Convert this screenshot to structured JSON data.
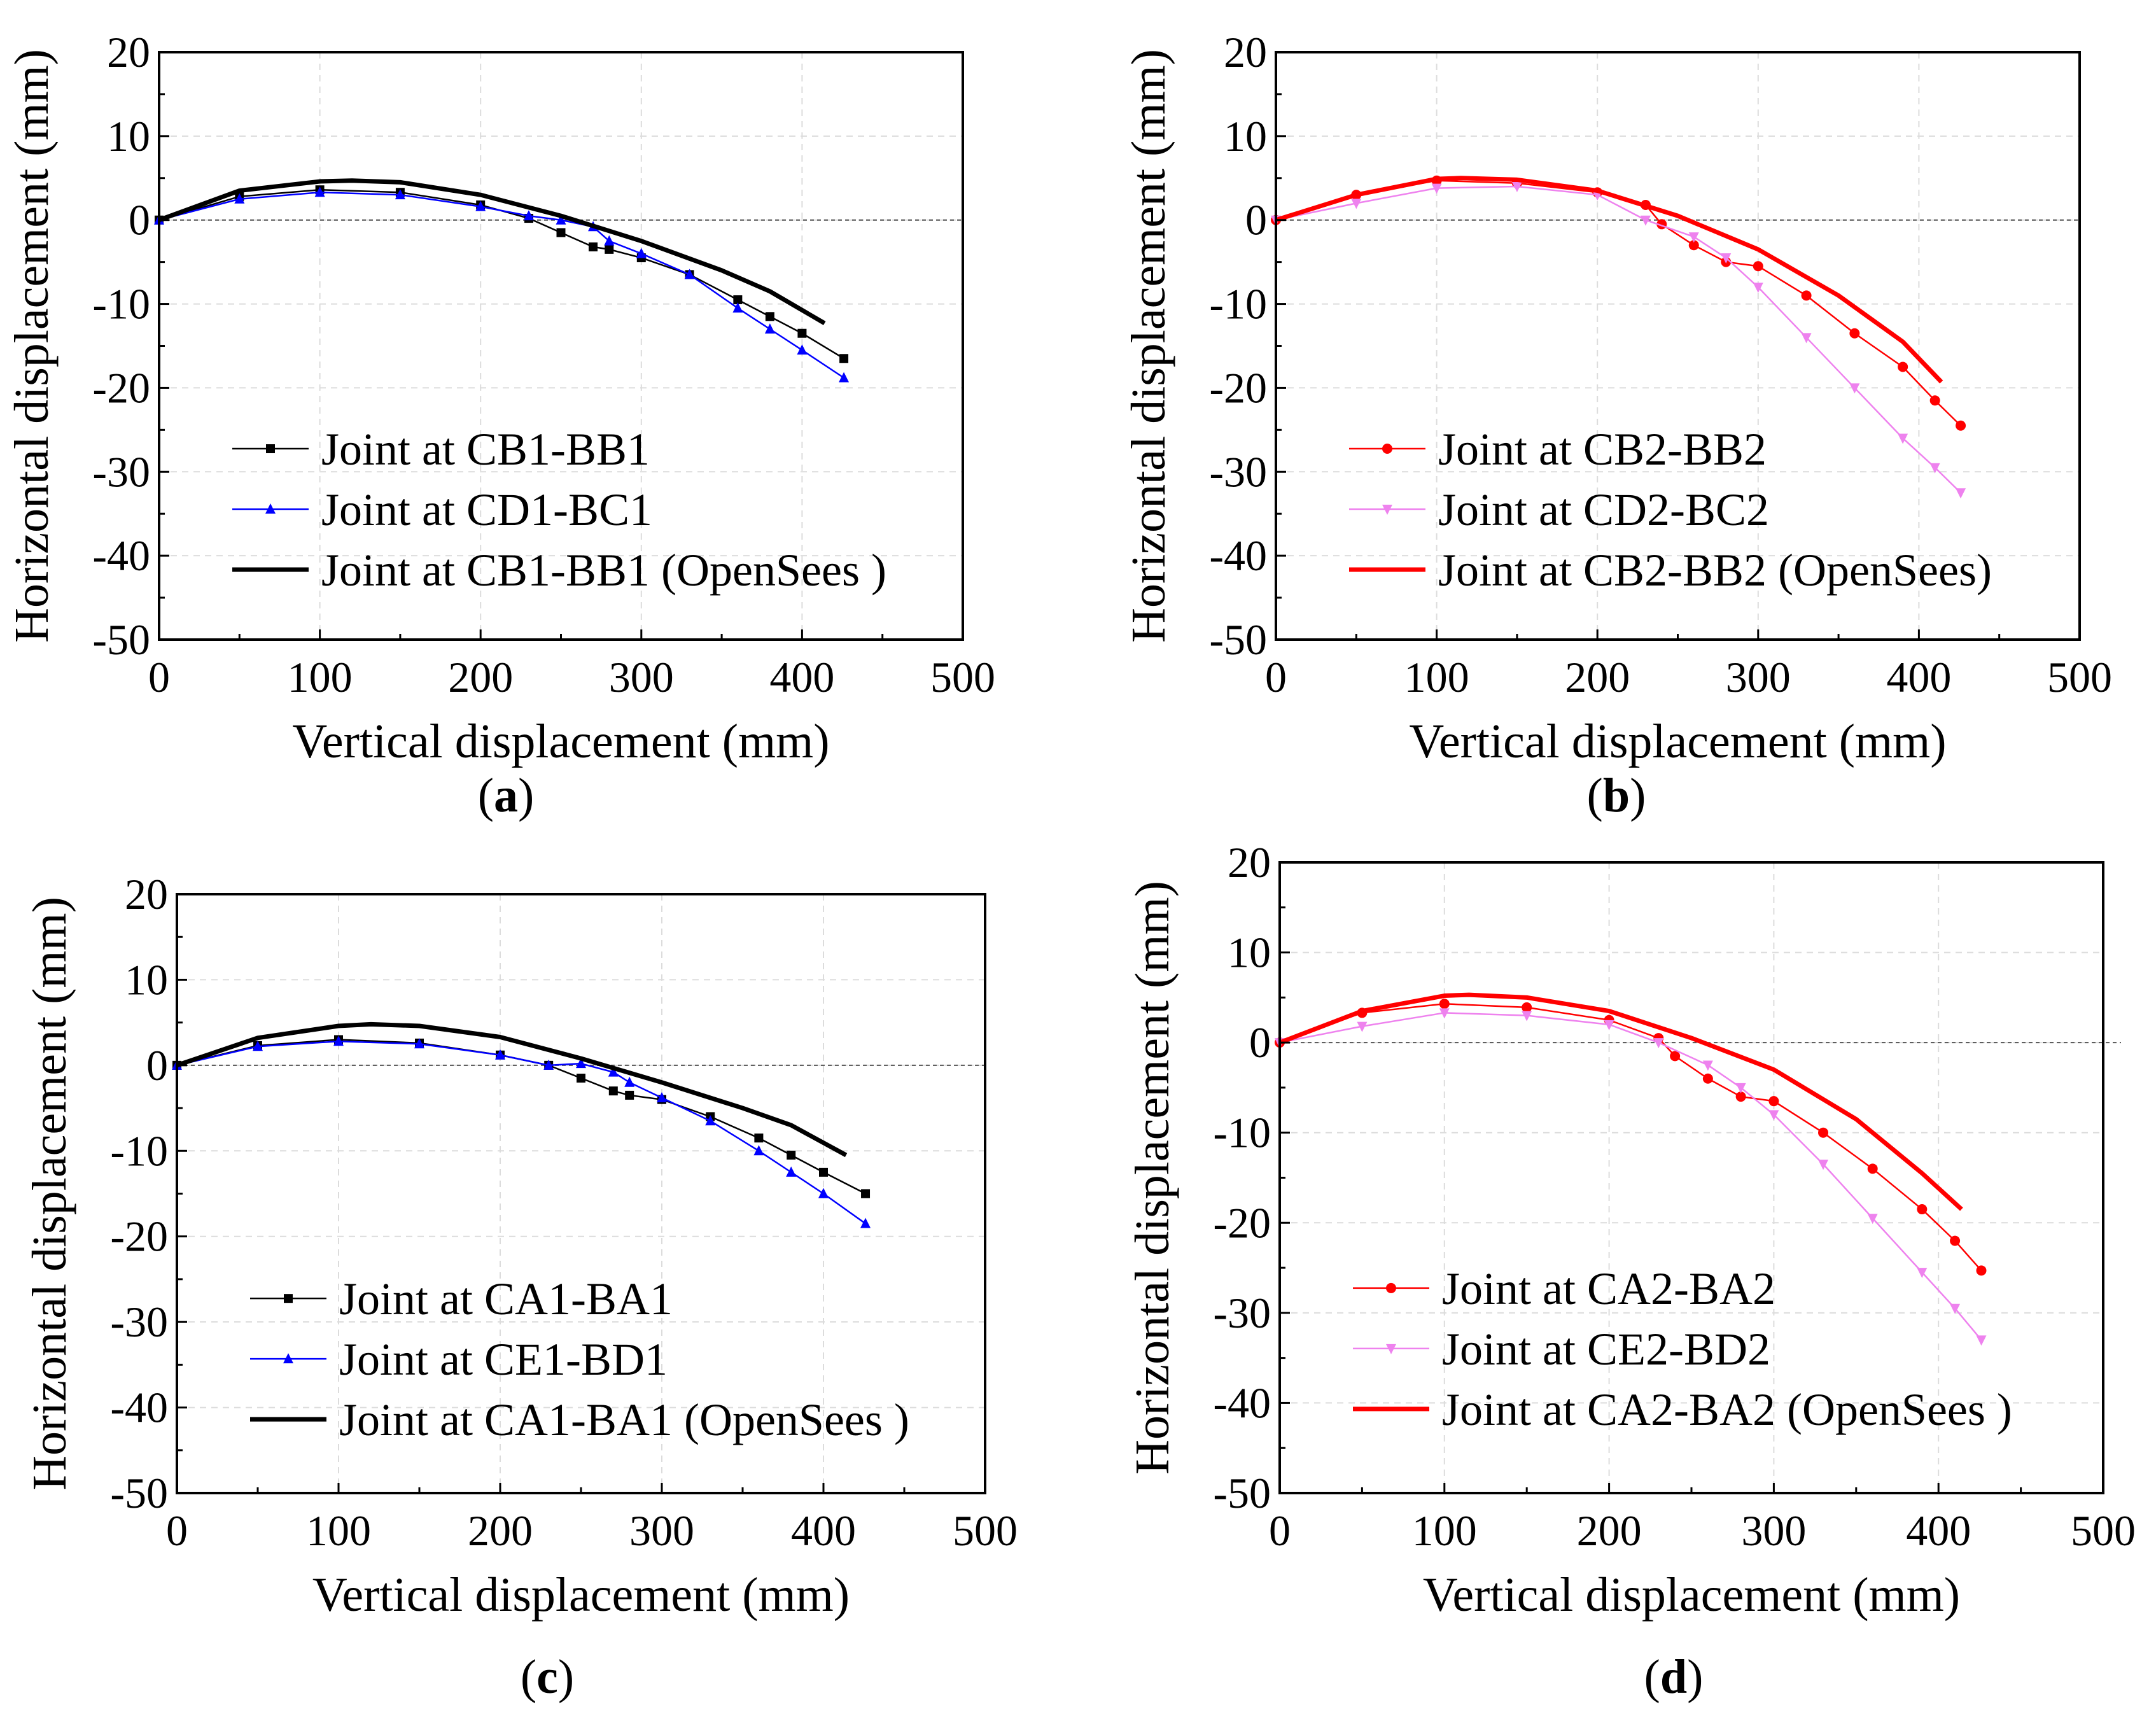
{
  "chart_data": [
    {
      "type": "line",
      "panel_label": "(a)",
      "label_letter": "a",
      "xlabel": "Vertical displacement (mm)",
      "ylabel": "Horizontal displacement (mm)",
      "xlim": [
        0,
        500
      ],
      "ylim": [
        -50,
        20
      ],
      "x_ticks": [
        0,
        100,
        200,
        300,
        400,
        500
      ],
      "y_ticks": [
        -50,
        -40,
        -30,
        -20,
        -10,
        0,
        10,
        20
      ],
      "x_tick_labels": [
        "0",
        "100",
        "200",
        "300",
        "400",
        "500"
      ],
      "y_tick_labels": [
        "-50",
        "-40",
        "-30",
        "-20",
        "-10",
        "0",
        "10",
        "20"
      ],
      "grid": true,
      "zero_line": true,
      "legend_position": "lower-left",
      "series": [
        {
          "name": "Joint at CB1-BB1",
          "color": "#000000",
          "marker": "square",
          "line_width": "thin",
          "x": [
            0,
            50,
            100,
            150,
            200,
            230,
            250,
            270,
            280,
            300,
            330,
            360,
            380,
            400,
            426
          ],
          "y": [
            0,
            2.8,
            3.6,
            3.3,
            1.8,
            0.2,
            -1.5,
            -3.2,
            -3.5,
            -4.5,
            -6.5,
            -9.5,
            -11.5,
            -13.5,
            -16.5
          ]
        },
        {
          "name": "Joint at CD1-BC1",
          "color": "#0000ff",
          "marker": "triangle",
          "line_width": "thin",
          "x": [
            0,
            50,
            100,
            150,
            200,
            230,
            250,
            270,
            280,
            300,
            330,
            360,
            380,
            400,
            426
          ],
          "y": [
            0,
            2.5,
            3.3,
            3.0,
            1.6,
            0.5,
            0.0,
            -0.8,
            -2.5,
            -4.0,
            -6.5,
            -10.5,
            -13.0,
            -15.5,
            -18.8
          ]
        },
        {
          "name": "Joint at CB1-BB1 (OpenSees )",
          "color": "#000000",
          "marker": "none",
          "line_width": "thick",
          "x": [
            0,
            50,
            100,
            120,
            150,
            200,
            250,
            300,
            350,
            380,
            414
          ],
          "y": [
            0,
            3.5,
            4.6,
            4.7,
            4.5,
            3.0,
            0.5,
            -2.5,
            -6.0,
            -8.5,
            -12.3
          ]
        }
      ]
    },
    {
      "type": "line",
      "panel_label": "(b)",
      "label_letter": "b",
      "xlabel": "Vertical displacement (mm)",
      "ylabel": "Horizontal displacement (mm)",
      "xlim": [
        0,
        500
      ],
      "ylim": [
        -50,
        20
      ],
      "x_ticks": [
        0,
        100,
        200,
        300,
        400,
        500
      ],
      "y_ticks": [
        -50,
        -40,
        -30,
        -20,
        -10,
        0,
        10,
        20
      ],
      "x_tick_labels": [
        "0",
        "100",
        "200",
        "300",
        "400",
        "500"
      ],
      "y_tick_labels": [
        "-50",
        "-40",
        "-30",
        "-20",
        "-10",
        "0",
        "10",
        "20"
      ],
      "grid": true,
      "zero_line": true,
      "legend_position": "lower-left",
      "series": [
        {
          "name": "Joint at CB2-BB2",
          "color": "#ff0000",
          "marker": "circle",
          "line_width": "thin",
          "x": [
            0,
            50,
            100,
            150,
            200,
            230,
            240,
            260,
            280,
            300,
            330,
            360,
            390,
            410,
            426
          ],
          "y": [
            0,
            3.0,
            4.7,
            4.4,
            3.3,
            1.8,
            -0.5,
            -3.0,
            -5.0,
            -5.5,
            -9.0,
            -13.5,
            -17.5,
            -21.5,
            -24.5
          ]
        },
        {
          "name": "Joint at CD2-BC2",
          "color": "#ee82ee",
          "marker": "triangle-down",
          "line_width": "thin",
          "x": [
            0,
            50,
            100,
            150,
            200,
            230,
            260,
            280,
            300,
            330,
            360,
            390,
            410,
            426
          ],
          "y": [
            0,
            2.0,
            3.8,
            4.0,
            3.0,
            0.0,
            -2.0,
            -4.5,
            -8.0,
            -14.0,
            -20.0,
            -26.0,
            -29.5,
            -32.5
          ]
        },
        {
          "name": "Joint at CB2-BB2 (OpenSees)",
          "color": "#ff0000",
          "marker": "none",
          "line_width": "thick",
          "x": [
            0,
            50,
            100,
            115,
            150,
            200,
            250,
            300,
            350,
            390,
            414
          ],
          "y": [
            0,
            3.0,
            4.9,
            5.0,
            4.8,
            3.5,
            0.5,
            -3.5,
            -9.0,
            -14.5,
            -19.3
          ]
        }
      ]
    },
    {
      "type": "line",
      "panel_label": "(c)",
      "label_letter": "c",
      "xlabel": "Vertical displacement (mm)",
      "ylabel": "Horizontal displacement (mm)",
      "xlim": [
        0,
        500
      ],
      "ylim": [
        -50,
        20
      ],
      "x_ticks": [
        0,
        100,
        200,
        300,
        400,
        500
      ],
      "y_ticks": [
        -50,
        -40,
        -30,
        -20,
        -10,
        0,
        10,
        20
      ],
      "x_tick_labels": [
        "0",
        "100",
        "200",
        "300",
        "400",
        "500"
      ],
      "y_tick_labels": [
        "-50",
        "-40",
        "-30",
        "-20",
        "-10",
        "0",
        "10",
        "20"
      ],
      "grid": true,
      "zero_line": true,
      "legend_position": "lower-left",
      "series": [
        {
          "name": "Joint at CA1-BA1",
          "color": "#000000",
          "marker": "square",
          "line_width": "thin",
          "x": [
            0,
            50,
            100,
            150,
            200,
            230,
            250,
            270,
            280,
            300,
            330,
            360,
            380,
            400,
            426
          ],
          "y": [
            0,
            2.3,
            3.0,
            2.6,
            1.2,
            0.0,
            -1.5,
            -3.0,
            -3.5,
            -4.0,
            -6.0,
            -8.5,
            -10.5,
            -12.5,
            -15.0
          ]
        },
        {
          "name": "Joint at CE1-BD1",
          "color": "#0000ff",
          "marker": "triangle",
          "line_width": "thin",
          "x": [
            0,
            50,
            100,
            150,
            200,
            230,
            250,
            270,
            280,
            300,
            330,
            360,
            380,
            400,
            426
          ],
          "y": [
            0,
            2.2,
            2.8,
            2.5,
            1.2,
            0.0,
            0.2,
            -0.8,
            -2.0,
            -3.8,
            -6.5,
            -10.0,
            -12.5,
            -15.0,
            -18.5
          ]
        },
        {
          "name": "Joint at CA1-BA1 (OpenSees )",
          "color": "#000000",
          "marker": "none",
          "line_width": "thick",
          "x": [
            0,
            50,
            100,
            120,
            150,
            200,
            250,
            300,
            350,
            380,
            414
          ],
          "y": [
            0,
            3.2,
            4.6,
            4.8,
            4.6,
            3.3,
            0.8,
            -2.0,
            -5.0,
            -7.0,
            -10.5
          ]
        }
      ]
    },
    {
      "type": "line",
      "panel_label": "(d)",
      "label_letter": "d",
      "xlabel": "Vertical displacement (mm)",
      "ylabel": "Horizontal displacement (mm)",
      "xlim": [
        0,
        500
      ],
      "ylim": [
        -50,
        20
      ],
      "x_ticks": [
        0,
        100,
        200,
        300,
        400,
        500
      ],
      "y_ticks": [
        -50,
        -40,
        -30,
        -20,
        -10,
        0,
        10,
        20
      ],
      "x_tick_labels": [
        "0",
        "100",
        "200",
        "300",
        "400",
        "500"
      ],
      "y_tick_labels": [
        "-50",
        "-40",
        "-30",
        "-20",
        "-10",
        "0",
        "10",
        "20"
      ],
      "grid": true,
      "zero_line": true,
      "legend_position": "lower-left",
      "series": [
        {
          "name": "Joint at CA2-BA2",
          "color": "#ff0000",
          "marker": "circle",
          "line_width": "thin",
          "x": [
            0,
            50,
            100,
            150,
            200,
            230,
            240,
            260,
            280,
            300,
            330,
            360,
            390,
            410,
            426
          ],
          "y": [
            0,
            3.3,
            4.3,
            3.9,
            2.5,
            0.5,
            -1.5,
            -4.0,
            -6.0,
            -6.5,
            -10.0,
            -14.0,
            -18.5,
            -22.0,
            -25.3
          ]
        },
        {
          "name": "Joint at CE2-BD2",
          "color": "#ee82ee",
          "marker": "triangle-down",
          "line_width": "thin",
          "x": [
            0,
            50,
            100,
            150,
            200,
            230,
            260,
            280,
            300,
            330,
            360,
            390,
            410,
            426
          ],
          "y": [
            0,
            1.8,
            3.3,
            3.0,
            2.0,
            0.0,
            -2.5,
            -5.0,
            -8.0,
            -13.5,
            -19.5,
            -25.5,
            -29.5,
            -33.0
          ]
        },
        {
          "name": "Joint at CA2-BA2 (OpenSees )",
          "color": "#ff0000",
          "marker": "none",
          "line_width": "thick",
          "x": [
            0,
            50,
            100,
            115,
            150,
            200,
            250,
            300,
            350,
            390,
            414
          ],
          "y": [
            0,
            3.5,
            5.2,
            5.3,
            5.0,
            3.5,
            0.5,
            -3.0,
            -8.5,
            -14.5,
            -18.5
          ]
        }
      ]
    }
  ]
}
